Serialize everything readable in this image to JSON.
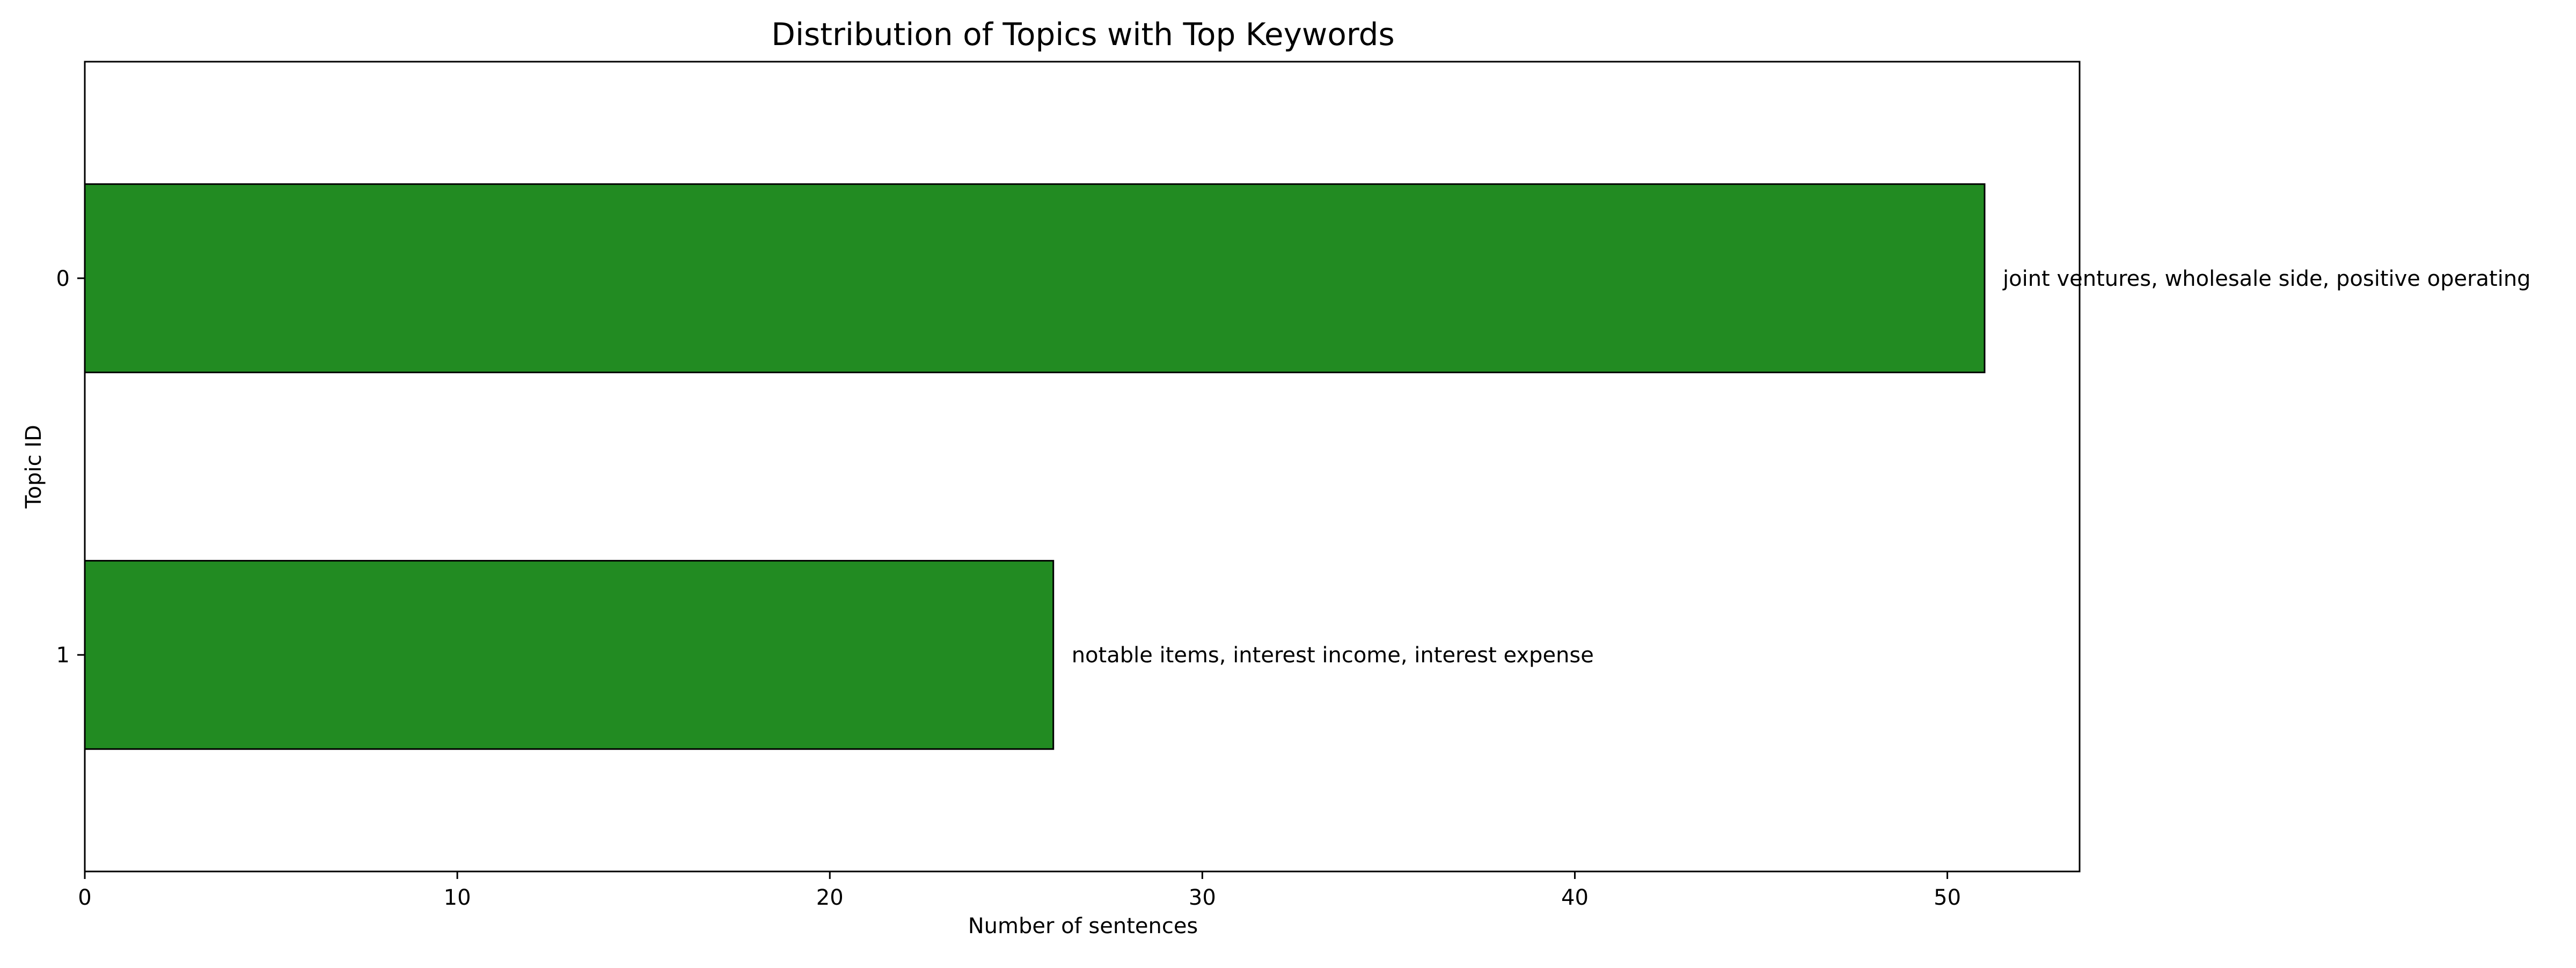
{
  "chart_data": {
    "type": "bar",
    "orientation": "horizontal",
    "title": "Distribution of Topics with Top Keywords",
    "xlabel": "Number of sentences",
    "ylabel": "Topic ID",
    "categories": [
      "0",
      "1"
    ],
    "values": [
      51,
      26
    ],
    "bar_labels": [
      "joint ventures, wholesale side, positive operating",
      "notable items, interest income, interest expense"
    ],
    "xlim": [
      0,
      53.55
    ],
    "xticks": [
      0,
      10,
      20,
      30,
      40,
      50
    ],
    "grid": false,
    "legend": false,
    "colors": {
      "bar_fill": "#228B22",
      "bar_edge": "#000000"
    }
  }
}
